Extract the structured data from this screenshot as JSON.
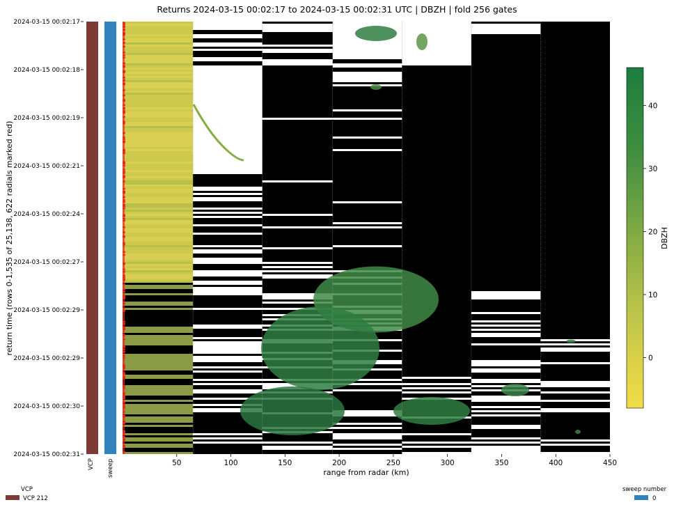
{
  "chart_data": {
    "type": "heatmap",
    "title": "Returns 2024-03-15 00:02:17 to 2024-03-15 00:02:31 UTC | DBZH | fold 256 gates",
    "xlabel": "range from radar (km)",
    "ylabel": "return time (rows 0-1,535 of 25,138, 622 radials marked red)",
    "xlim": [
      0,
      450
    ],
    "x_ticks": [
      50,
      100,
      150,
      200,
      250,
      300,
      350,
      400,
      450
    ],
    "y_tick_labels": [
      "2024-03-15 00:02:17",
      "2024-03-15 00:02:18",
      "2024-03-15 00:02:19",
      "2024-03-15 00:02:21",
      "2024-03-15 00:02:24",
      "2024-03-15 00:02:27",
      "2024-03-15 00:02:29",
      "2024-03-15 00:02:29",
      "2024-03-15 00:02:30",
      "2024-03-15 00:02:31"
    ],
    "fold_boundaries_km": [
      65,
      129,
      194,
      258,
      322,
      386
    ],
    "colorbar": {
      "label": "DBZH",
      "range": [
        -8,
        46
      ],
      "ticks": [
        0,
        10,
        20,
        30,
        40
      ],
      "colors": [
        "#f4dc46",
        "#c3c84a",
        "#84ad43",
        "#3f8f3f",
        "#1d7e3f"
      ]
    },
    "side_strips": [
      {
        "label": "VCP",
        "color": "#7e3a34"
      },
      {
        "label": "sweep",
        "color": "#3282bd"
      }
    ],
    "legends": [
      {
        "title": "VCP",
        "entries": [
          {
            "label": "VCP 212",
            "color": "#7e3a34"
          }
        ]
      },
      {
        "title": "sweep number",
        "entries": [
          {
            "label": "0",
            "color": "#3282bd"
          }
        ]
      }
    ]
  }
}
